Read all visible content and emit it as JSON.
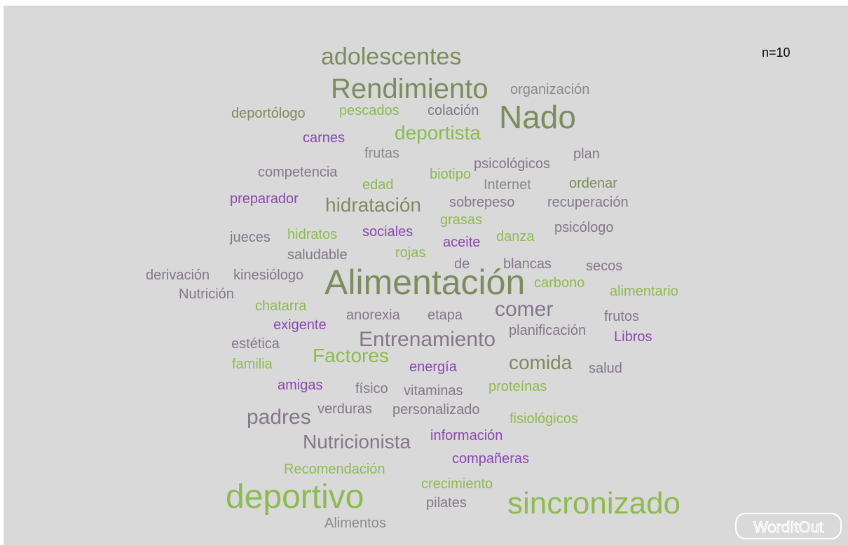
{
  "note_label": "n=10",
  "logo": "WordItOut",
  "words": [
    "adolescentes",
    "Rendimiento",
    "organización",
    "deportólogo",
    "pescados",
    "colación",
    "Nado",
    "carnes",
    "deportista",
    "frutas",
    "plan",
    "psicológicos",
    "competencia",
    "biotipo",
    "edad",
    "Internet",
    "ordenar",
    "preparador",
    "hidratación",
    "sobrepeso",
    "recuperación",
    "grasas",
    "jueces",
    "hidratos",
    "sociales",
    "aceite",
    "danza",
    "psicólogo",
    "saludable",
    "rojas",
    "de",
    "blancas",
    "secos",
    "derivación",
    "kinesiólogo",
    "Alimentación",
    "carbono",
    "alimentario",
    "Nutrición",
    "chatarra",
    "anorexia",
    "etapa",
    "comer",
    "frutos",
    "exigente",
    "planificación",
    "Libros",
    "estética",
    "Entrenamiento",
    "Factores",
    "familia",
    "energía",
    "comida",
    "salud",
    "amigas",
    "físico",
    "vitaminas",
    "proteínas",
    "padres",
    "verduras",
    "personalizado",
    "fisiológicos",
    "Nutricionista",
    "información",
    "compañeras",
    "Recomendación",
    "crecimiento",
    "deportivo",
    "sincronizado",
    "pilates",
    "Alimentos"
  ]
}
